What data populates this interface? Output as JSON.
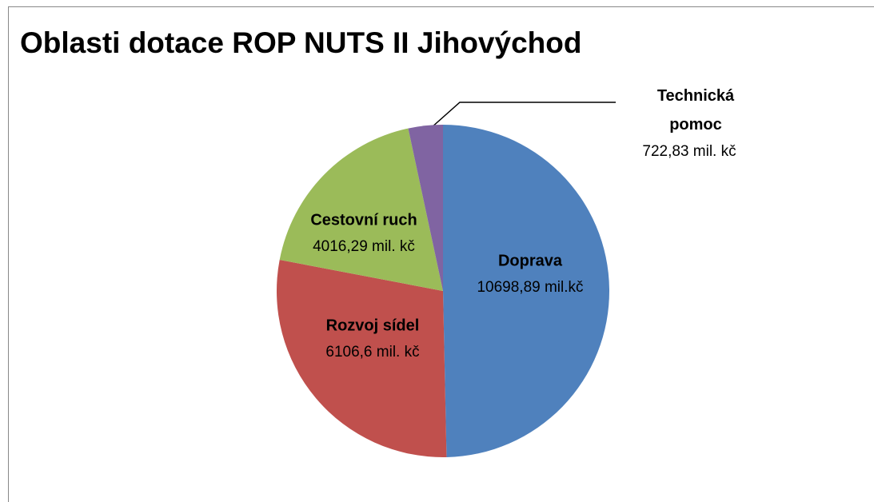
{
  "chart_data": {
    "type": "pie",
    "title": "Oblasti dotace ROP NUTS II Jihovýchod",
    "categories": [
      "Doprava",
      "Rozvoj sídel",
      "Cestovní ruch",
      "Technická pomoc"
    ],
    "values": [
      10698.89,
      6106.6,
      4016.29,
      722.83
    ],
    "value_labels": [
      "10698,89 mil.kč",
      "6106,6 mil. kč",
      "4016,29 mil. kč",
      "722,83 mil. kč"
    ],
    "colors": [
      "#4f81bd",
      "#c0504d",
      "#9bbb59",
      "#8064a2"
    ]
  }
}
